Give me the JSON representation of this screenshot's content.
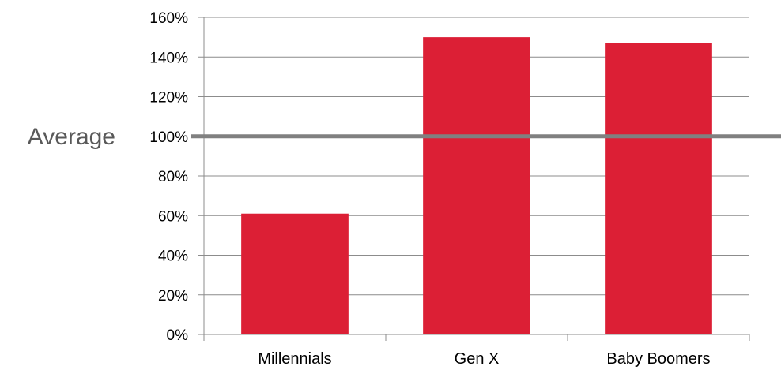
{
  "chart_data": {
    "type": "bar",
    "title": "",
    "xlabel": "",
    "ylabel": "",
    "categories": [
      "Millennials",
      "Gen X",
      "Baby Boomers"
    ],
    "values": [
      61,
      150,
      147
    ],
    "y_unit": "%",
    "ylim": [
      0,
      160
    ],
    "y_ticks": [
      0,
      20,
      40,
      60,
      80,
      100,
      120,
      140,
      160
    ],
    "y_tick_labels": [
      "0%",
      "20%",
      "40%",
      "60%",
      "80%",
      "100%",
      "120%",
      "140%",
      "160%"
    ],
    "grid": true,
    "legend": "none",
    "reference_line": {
      "label": "Average",
      "value": 100
    },
    "colors": {
      "bar": "#dc1f35",
      "grid": "#8c8c8c",
      "reference": "#808080",
      "axis": "#8c8c8c"
    }
  }
}
